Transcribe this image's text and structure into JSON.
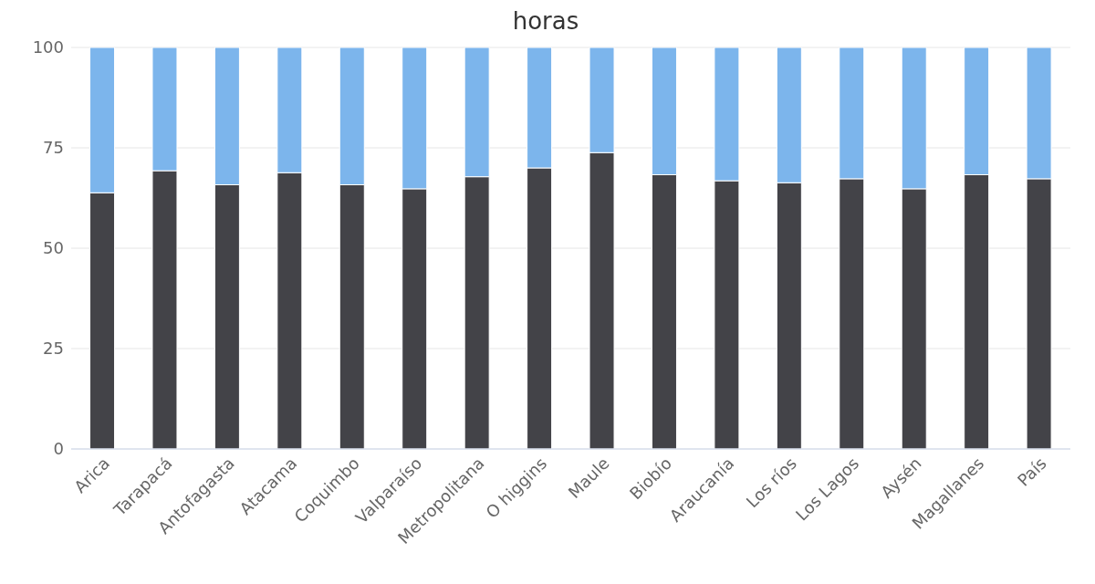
{
  "chart_data": {
    "type": "bar",
    "title": "horas",
    "stacked": true,
    "grid": "y",
    "legend": false,
    "categories": [
      "Arica",
      "Tarapacá",
      "Antofagasta",
      "Atacama",
      "Coquimbo",
      "Valparaíso",
      "Metropolitana",
      "O higgins",
      "Maule",
      "Biobío",
      "Araucanía",
      "Los ríos",
      "Los Lagos",
      "Aysén",
      "Magallanes",
      "País"
    ],
    "series": [
      {
        "color": "#434348",
        "values": [
          63.8,
          69.3,
          65.8,
          68.8,
          65.8,
          64.8,
          67.8,
          70,
          73.8,
          68.3,
          66.8,
          66.3,
          67.3,
          64.8,
          68.3,
          67.3
        ]
      },
      {
        "color": "#7cb5ec",
        "values": [
          36.2,
          30.7,
          34.2,
          31.2,
          34.2,
          35.2,
          32.2,
          30,
          26.2,
          31.7,
          33.2,
          33.7,
          32.7,
          35.2,
          31.7,
          32.7
        ]
      }
    ],
    "ylim": [
      0,
      100
    ],
    "yticks": [
      0,
      25,
      50,
      75,
      100
    ]
  }
}
